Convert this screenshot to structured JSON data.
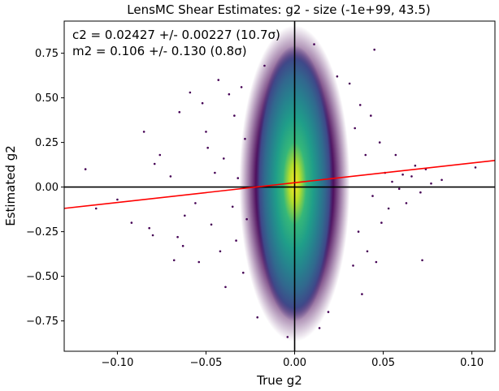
{
  "chart_data": {
    "type": "scatter",
    "title": "LensMC Shear Estimates: g2  - size (-1e+99, 43.5)",
    "xlabel": "True g2",
    "ylabel": "Estimated g2",
    "xlim": [
      -0.13,
      0.113
    ],
    "ylim": [
      -0.92,
      0.93
    ],
    "xticks": [
      -0.1,
      -0.05,
      0.0,
      0.05,
      0.1
    ],
    "xtick_labels": [
      "−0.10",
      "−0.05",
      "0.00",
      "0.05",
      "0.10"
    ],
    "yticks": [
      -0.75,
      -0.5,
      -0.25,
      0.0,
      0.25,
      0.5,
      0.75
    ],
    "ytick_labels": [
      "−0.75",
      "−0.50",
      "−0.25",
      "0.00",
      "0.25",
      "0.50",
      "0.75"
    ],
    "annotations": [
      "c2 = 0.02427 +/- 0.00227 (10.7σ)",
      "m2 = 0.106 +/- 0.130 (0.8σ)"
    ],
    "fit_line": {
      "slope": 1.106,
      "intercept": 0.02427,
      "color": "#ff0000"
    },
    "reference_lines": {
      "x": 0,
      "y": 0,
      "color": "#000000"
    },
    "colormap": "viridis",
    "grid": false,
    "scatter_sample": [
      [
        -0.118,
        0.1
      ],
      [
        -0.112,
        -0.12
      ],
      [
        -0.1,
        -0.07
      ],
      [
        -0.092,
        -0.2
      ],
      [
        -0.085,
        0.31
      ],
      [
        -0.082,
        -0.23
      ],
      [
        -0.08,
        -0.27
      ],
      [
        -0.079,
        0.13
      ],
      [
        -0.076,
        0.18
      ],
      [
        -0.07,
        0.06
      ],
      [
        -0.068,
        -0.41
      ],
      [
        -0.066,
        -0.28
      ],
      [
        -0.065,
        0.42
      ],
      [
        -0.063,
        -0.33
      ],
      [
        -0.062,
        -0.16
      ],
      [
        -0.059,
        0.53
      ],
      [
        -0.056,
        -0.09
      ],
      [
        -0.054,
        -0.42
      ],
      [
        -0.052,
        0.47
      ],
      [
        -0.05,
        0.31
      ],
      [
        -0.049,
        0.22
      ],
      [
        -0.047,
        -0.21
      ],
      [
        -0.045,
        0.08
      ],
      [
        -0.043,
        0.6
      ],
      [
        -0.042,
        -0.36
      ],
      [
        -0.04,
        0.16
      ],
      [
        -0.039,
        -0.56
      ],
      [
        -0.037,
        0.52
      ],
      [
        -0.035,
        -0.11
      ],
      [
        -0.034,
        0.4
      ],
      [
        -0.033,
        -0.3
      ],
      [
        -0.032,
        0.05
      ],
      [
        -0.03,
        0.56
      ],
      [
        -0.029,
        -0.48
      ],
      [
        -0.028,
        0.27
      ],
      [
        -0.027,
        -0.18
      ],
      [
        0.031,
        0.58
      ],
      [
        0.033,
        -0.44
      ],
      [
        0.034,
        0.33
      ],
      [
        0.036,
        -0.25
      ],
      [
        0.037,
        0.46
      ],
      [
        0.038,
        -0.6
      ],
      [
        0.04,
        0.18
      ],
      [
        0.041,
        -0.36
      ],
      [
        0.043,
        0.4
      ],
      [
        0.044,
        -0.05
      ],
      [
        0.045,
        0.77
      ],
      [
        0.046,
        -0.42
      ],
      [
        0.048,
        0.25
      ],
      [
        0.049,
        -0.2
      ],
      [
        0.051,
        0.08
      ],
      [
        0.053,
        -0.12
      ],
      [
        0.055,
        0.03
      ],
      [
        0.057,
        0.18
      ],
      [
        0.059,
        -0.01
      ],
      [
        0.061,
        0.07
      ],
      [
        0.063,
        -0.09
      ],
      [
        0.066,
        0.06
      ],
      [
        0.068,
        0.12
      ],
      [
        0.071,
        -0.03
      ],
      [
        0.072,
        -0.41
      ],
      [
        0.074,
        0.1
      ],
      [
        0.077,
        0.02
      ],
      [
        0.083,
        0.04
      ],
      [
        0.102,
        0.11
      ],
      [
        0.011,
        0.8
      ],
      [
        -0.004,
        -0.84
      ],
      [
        0.014,
        -0.79
      ],
      [
        0.019,
        -0.7
      ],
      [
        0.024,
        0.62
      ],
      [
        -0.021,
        -0.73
      ],
      [
        -0.017,
        0.68
      ]
    ]
  }
}
